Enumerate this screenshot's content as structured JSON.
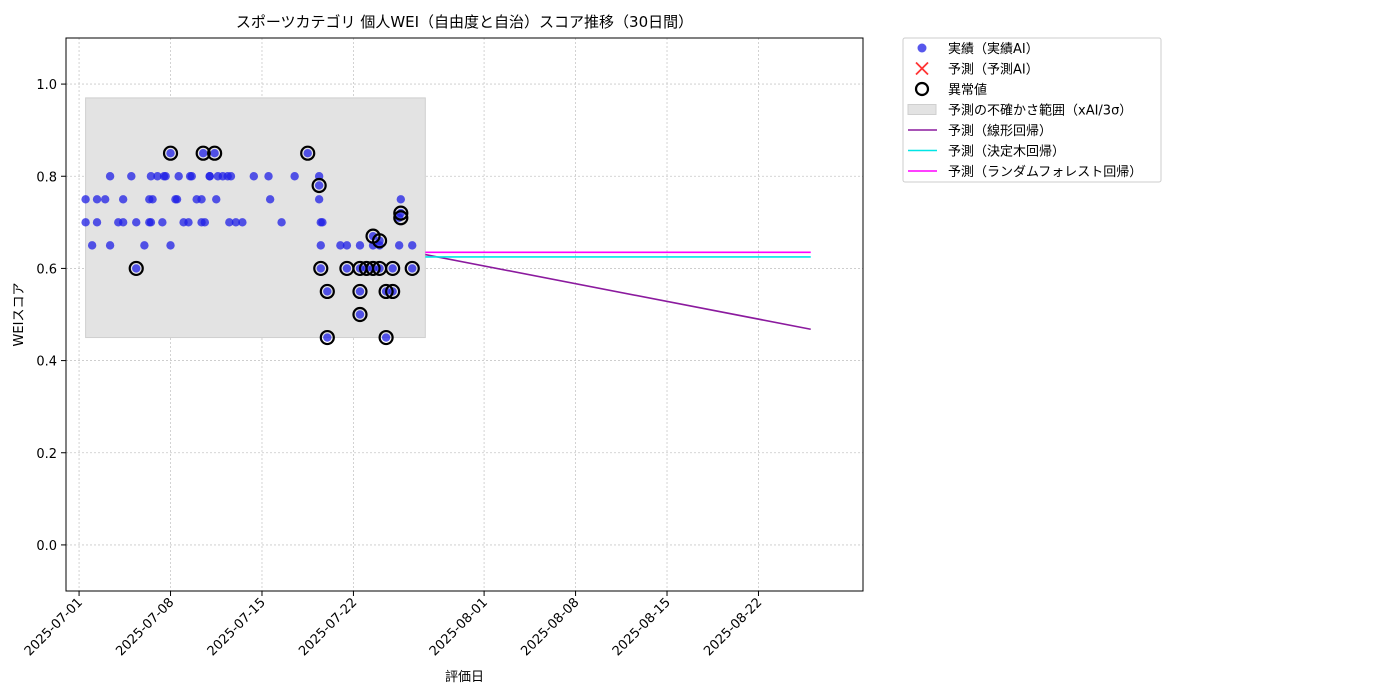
{
  "chart_data": {
    "type": "scatter",
    "title": "スポーツカテゴリ 個人WEI（自由度と自治）スコア推移（30日間）",
    "xlabel": "評価日",
    "ylabel": "WEIスコア",
    "x_type": "date",
    "xlim": [
      "2024-06-28T16:00",
      "2025-08-30T00:00"
    ],
    "ylim": [
      -0.1,
      1.1
    ],
    "x_ticks": [
      "2025-07-01",
      "2025-07-08",
      "2025-07-15",
      "2025-07-22",
      "2025-08-01",
      "2025-08-08",
      "2025-08-15",
      "2025-08-22"
    ],
    "y_ticks": [
      0.0,
      0.2,
      0.4,
      0.6,
      0.8,
      1.0
    ],
    "y_tick_labels": [
      "0.0",
      "0.2",
      "0.4",
      "0.6",
      "0.8",
      "1.0"
    ],
    "grid": true,
    "legend_position": "outside-top-right",
    "uncertainty_band": {
      "name": "予測の不確かさ範囲（xAI/3σ）",
      "x_start": "2025-07-01T12:00",
      "x_end": "2025-07-27T12:00",
      "y_low": 0.45,
      "y_high": 0.97,
      "color": "#e3e3e3"
    },
    "actual": {
      "name": "実績（実績AI）",
      "color": "#1f1fe6",
      "points": [
        [
          "2025-07-01T12:00",
          0.75
        ],
        [
          "2025-07-01T12:00",
          0.7
        ],
        [
          "2025-07-02T00:00",
          0.65
        ],
        [
          "2025-07-02T09:00",
          0.75
        ],
        [
          "2025-07-02T09:00",
          0.7
        ],
        [
          "2025-07-03T00:00",
          0.75
        ],
        [
          "2025-07-03T09:00",
          0.8
        ],
        [
          "2025-07-03T09:00",
          0.65
        ],
        [
          "2025-07-04T00:00",
          0.7
        ],
        [
          "2025-07-04T09:00",
          0.75
        ],
        [
          "2025-07-04T09:00",
          0.7
        ],
        [
          "2025-07-05T00:00",
          0.8
        ],
        [
          "2025-07-05T09:00",
          0.7
        ],
        [
          "2025-07-05T09:00",
          0.6
        ],
        [
          "2025-07-06T00:00",
          0.65
        ],
        [
          "2025-07-06T09:00",
          0.75
        ],
        [
          "2025-07-06T09:00",
          0.7
        ],
        [
          "2025-07-06T12:00",
          0.8
        ],
        [
          "2025-07-06T12:00",
          0.7
        ],
        [
          "2025-07-06T15:00",
          0.75
        ],
        [
          "2025-07-07T00:00",
          0.8
        ],
        [
          "2025-07-07T09:00",
          0.7
        ],
        [
          "2025-07-07T12:00",
          0.8
        ],
        [
          "2025-07-07T15:00",
          0.8
        ],
        [
          "2025-07-08T00:00",
          0.65
        ],
        [
          "2025-07-08T00:00",
          0.85
        ],
        [
          "2025-07-08T09:00",
          0.75
        ],
        [
          "2025-07-08T12:00",
          0.75
        ],
        [
          "2025-07-08T15:00",
          0.8
        ],
        [
          "2025-07-09T00:00",
          0.7
        ],
        [
          "2025-07-09T09:00",
          0.7
        ],
        [
          "2025-07-09T12:00",
          0.8
        ],
        [
          "2025-07-09T15:00",
          0.8
        ],
        [
          "2025-07-10T00:00",
          0.75
        ],
        [
          "2025-07-10T09:00",
          0.75
        ],
        [
          "2025-07-10T09:00",
          0.7
        ],
        [
          "2025-07-10T12:00",
          0.85
        ],
        [
          "2025-07-10T15:00",
          0.7
        ],
        [
          "2025-07-11T00:00",
          0.8
        ],
        [
          "2025-07-11T00:00",
          0.8
        ],
        [
          "2025-07-11T09:00",
          0.85
        ],
        [
          "2025-07-11T12:00",
          0.75
        ],
        [
          "2025-07-11T15:00",
          0.8
        ],
        [
          "2025-07-12T00:00",
          0.8
        ],
        [
          "2025-07-12T09:00",
          0.8
        ],
        [
          "2025-07-12T12:00",
          0.7
        ],
        [
          "2025-07-12T15:00",
          0.8
        ],
        [
          "2025-07-13T00:00",
          0.7
        ],
        [
          "2025-07-13T12:00",
          0.7
        ],
        [
          "2025-07-14T09:00",
          0.8
        ],
        [
          "2025-07-15T12:00",
          0.8
        ],
        [
          "2025-07-15T15:00",
          0.75
        ],
        [
          "2025-07-16T12:00",
          0.7
        ],
        [
          "2025-07-17T12:00",
          0.8
        ],
        [
          "2025-07-18T12:00",
          0.85
        ],
        [
          "2025-07-19T09:00",
          0.8
        ],
        [
          "2025-07-19T09:00",
          0.78
        ],
        [
          "2025-07-19T09:00",
          0.75
        ],
        [
          "2025-07-19T12:00",
          0.7
        ],
        [
          "2025-07-19T12:00",
          0.65
        ],
        [
          "2025-07-19T12:00",
          0.6
        ],
        [
          "2025-07-19T15:00",
          0.7
        ],
        [
          "2025-07-20T00:00",
          0.55
        ],
        [
          "2025-07-20T00:00",
          0.45
        ],
        [
          "2025-07-21T00:00",
          0.65
        ],
        [
          "2025-07-21T12:00",
          0.6
        ],
        [
          "2025-07-21T12:00",
          0.65
        ],
        [
          "2025-07-22T12:00",
          0.6
        ],
        [
          "2025-07-22T12:00",
          0.55
        ],
        [
          "2025-07-22T12:00",
          0.5
        ],
        [
          "2025-07-22T12:00",
          0.65
        ],
        [
          "2025-07-23T00:00",
          0.6
        ],
        [
          "2025-07-23T12:00",
          0.67
        ],
        [
          "2025-07-23T12:00",
          0.65
        ],
        [
          "2025-07-23T12:00",
          0.6
        ],
        [
          "2025-07-24T00:00",
          0.65
        ],
        [
          "2025-07-24T00:00",
          0.66
        ],
        [
          "2025-07-24T00:00",
          0.6
        ],
        [
          "2025-07-24T12:00",
          0.55
        ],
        [
          "2025-07-24T12:00",
          0.45
        ],
        [
          "2025-07-25T00:00",
          0.6
        ],
        [
          "2025-07-25T00:00",
          0.55
        ],
        [
          "2025-07-25T12:00",
          0.65
        ],
        [
          "2025-07-25T12:00",
          0.71
        ],
        [
          "2025-07-25T15:00",
          0.72
        ],
        [
          "2025-07-25T15:00",
          0.75
        ],
        [
          "2025-07-26T12:00",
          0.65
        ],
        [
          "2025-07-26T12:00",
          0.6
        ]
      ]
    },
    "anomalies": {
      "name": "異常値",
      "points": [
        [
          "2025-07-05T09:00",
          0.6
        ],
        [
          "2025-07-08T00:00",
          0.85
        ],
        [
          "2025-07-10T12:00",
          0.85
        ],
        [
          "2025-07-11T09:00",
          0.85
        ],
        [
          "2025-07-18T12:00",
          0.85
        ],
        [
          "2025-07-19T09:00",
          0.78
        ],
        [
          "2025-07-19T12:00",
          0.6
        ],
        [
          "2025-07-20T00:00",
          0.55
        ],
        [
          "2025-07-20T00:00",
          0.45
        ],
        [
          "2025-07-21T12:00",
          0.6
        ],
        [
          "2025-07-22T12:00",
          0.6
        ],
        [
          "2025-07-22T12:00",
          0.55
        ],
        [
          "2025-07-22T12:00",
          0.5
        ],
        [
          "2025-07-23T00:00",
          0.6
        ],
        [
          "2025-07-23T12:00",
          0.67
        ],
        [
          "2025-07-23T12:00",
          0.6
        ],
        [
          "2025-07-24T00:00",
          0.66
        ],
        [
          "2025-07-24T00:00",
          0.6
        ],
        [
          "2025-07-24T12:00",
          0.55
        ],
        [
          "2025-07-24T12:00",
          0.45
        ],
        [
          "2025-07-25T00:00",
          0.6
        ],
        [
          "2025-07-25T00:00",
          0.55
        ],
        [
          "2025-07-25T15:00",
          0.71
        ],
        [
          "2025-07-25T15:00",
          0.72
        ],
        [
          "2025-07-26T12:00",
          0.6
        ]
      ]
    },
    "predicted_marker": {
      "name": "予測（予測AI）",
      "color": "#ff3333",
      "points": []
    },
    "series": [
      {
        "name": "予測（線形回帰）",
        "color": "#8b1a9e",
        "x": [
          "2025-07-27T12:00",
          "2025-08-26T00:00"
        ],
        "y": [
          0.63,
          0.468
        ]
      },
      {
        "name": "予測（決定木回帰）",
        "color": "#00e5e5",
        "x": [
          "2025-07-27T12:00",
          "2025-08-26T00:00"
        ],
        "y": [
          0.625,
          0.625
        ]
      },
      {
        "name": "予測（ランダムフォレスト回帰）",
        "color": "#ff00ff",
        "x": [
          "2025-07-27T12:00",
          "2025-08-26T00:00"
        ],
        "y": [
          0.635,
          0.635
        ]
      }
    ],
    "legend": [
      "実績（実績AI）",
      "予測（予測AI）",
      "異常値",
      "予測の不確かさ範囲（xAI/3σ）",
      "予測（線形回帰）",
      "予測（決定木回帰）",
      "予測（ランダムフォレスト回帰）"
    ]
  }
}
